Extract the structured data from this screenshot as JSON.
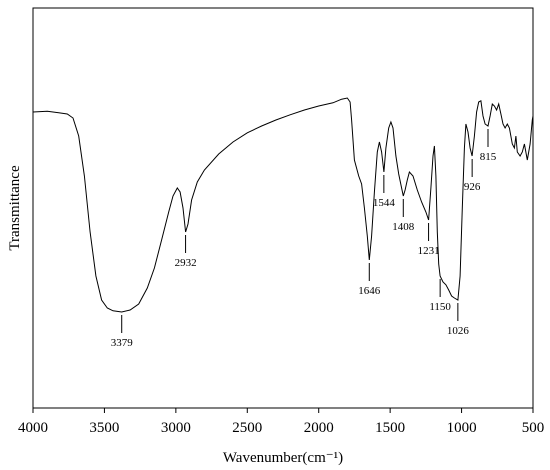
{
  "chart_data": {
    "type": "line",
    "title": "",
    "xlabel": "Wavenumber(cm⁻¹)",
    "ylabel": "Transmittance",
    "xlim": [
      4000,
      500
    ],
    "ylim": [
      0,
      100
    ],
    "x_reversed": true,
    "grid": false,
    "y_tick_labels": false,
    "x_ticks": [
      {
        "value": 4000,
        "label": "4000"
      },
      {
        "value": 3500,
        "label": "3500"
      },
      {
        "value": 3000,
        "label": "3000"
      },
      {
        "value": 2500,
        "label": "2500"
      },
      {
        "value": 2000,
        "label": "2000"
      },
      {
        "value": 1500,
        "label": "1500"
      },
      {
        "value": 1000,
        "label": "1000"
      },
      {
        "value": 500,
        "label": "500"
      }
    ],
    "series": [
      {
        "color": "#000000",
        "points": [
          [
            4000,
            74
          ],
          [
            3900,
            74.2
          ],
          [
            3820,
            73.8
          ],
          [
            3760,
            73.5
          ],
          [
            3720,
            72.5
          ],
          [
            3680,
            68
          ],
          [
            3640,
            58
          ],
          [
            3600,
            44
          ],
          [
            3560,
            33
          ],
          [
            3520,
            27
          ],
          [
            3480,
            25
          ],
          [
            3440,
            24.3
          ],
          [
            3379,
            24
          ],
          [
            3320,
            24.5
          ],
          [
            3260,
            26
          ],
          [
            3200,
            30
          ],
          [
            3150,
            35
          ],
          [
            3100,
            42
          ],
          [
            3050,
            49
          ],
          [
            3020,
            53
          ],
          [
            2990,
            55
          ],
          [
            2970,
            54
          ],
          [
            2950,
            50
          ],
          [
            2932,
            44
          ],
          [
            2915,
            46
          ],
          [
            2890,
            52
          ],
          [
            2850,
            56.5
          ],
          [
            2800,
            59.5
          ],
          [
            2700,
            63.5
          ],
          [
            2600,
            66.5
          ],
          [
            2500,
            68.8
          ],
          [
            2400,
            70.5
          ],
          [
            2300,
            72
          ],
          [
            2200,
            73.3
          ],
          [
            2100,
            74.5
          ],
          [
            2000,
            75.5
          ],
          [
            1900,
            76.3
          ],
          [
            1840,
            77.2
          ],
          [
            1800,
            77.5
          ],
          [
            1780,
            76.5
          ],
          [
            1770,
            72
          ],
          [
            1750,
            62
          ],
          [
            1720,
            58
          ],
          [
            1700,
            56
          ],
          [
            1680,
            50
          ],
          [
            1660,
            43
          ],
          [
            1646,
            37
          ],
          [
            1630,
            43
          ],
          [
            1610,
            54
          ],
          [
            1590,
            64
          ],
          [
            1575,
            66.5
          ],
          [
            1560,
            64
          ],
          [
            1544,
            59
          ],
          [
            1530,
            65
          ],
          [
            1510,
            70
          ],
          [
            1495,
            71.5
          ],
          [
            1480,
            70
          ],
          [
            1460,
            63
          ],
          [
            1440,
            58.5
          ],
          [
            1420,
            55
          ],
          [
            1408,
            53
          ],
          [
            1395,
            54.5
          ],
          [
            1380,
            57
          ],
          [
            1365,
            59
          ],
          [
            1340,
            58
          ],
          [
            1310,
            54.5
          ],
          [
            1280,
            51.5
          ],
          [
            1250,
            49
          ],
          [
            1231,
            47
          ],
          [
            1215,
            55
          ],
          [
            1200,
            63
          ],
          [
            1190,
            65.5
          ],
          [
            1180,
            58
          ],
          [
            1170,
            44
          ],
          [
            1160,
            36
          ],
          [
            1150,
            33
          ],
          [
            1130,
            31.5
          ],
          [
            1110,
            30.8
          ],
          [
            1090,
            29.5
          ],
          [
            1070,
            28
          ],
          [
            1050,
            27.5
          ],
          [
            1026,
            27
          ],
          [
            1010,
            33
          ],
          [
            995,
            50
          ],
          [
            980,
            65
          ],
          [
            970,
            71
          ],
          [
            955,
            69
          ],
          [
            940,
            65
          ],
          [
            926,
            63
          ],
          [
            910,
            68
          ],
          [
            895,
            74
          ],
          [
            880,
            76.5
          ],
          [
            865,
            76.8
          ],
          [
            850,
            73
          ],
          [
            835,
            71
          ],
          [
            815,
            70.5
          ],
          [
            800,
            73
          ],
          [
            785,
            76
          ],
          [
            770,
            75.5
          ],
          [
            755,
            74.5
          ],
          [
            740,
            76
          ],
          [
            725,
            73.5
          ],
          [
            710,
            71
          ],
          [
            695,
            70
          ],
          [
            680,
            71
          ],
          [
            665,
            70
          ],
          [
            645,
            66
          ],
          [
            630,
            65
          ],
          [
            620,
            68
          ],
          [
            610,
            64
          ],
          [
            590,
            63
          ],
          [
            575,
            64
          ],
          [
            560,
            66
          ],
          [
            540,
            62
          ],
          [
            520,
            66
          ],
          [
            505,
            72
          ],
          [
            500,
            73
          ]
        ]
      }
    ],
    "peaks": [
      {
        "x": 3379,
        "y": 24,
        "label": "3379"
      },
      {
        "x": 2932,
        "y": 44,
        "label": "2932"
      },
      {
        "x": 1646,
        "y": 37,
        "label": "1646"
      },
      {
        "x": 1544,
        "y": 59,
        "label": "1544"
      },
      {
        "x": 1408,
        "y": 53,
        "label": "1408"
      },
      {
        "x": 1231,
        "y": 47,
        "label": "1231"
      },
      {
        "x": 1150,
        "y": 33,
        "label": "1150"
      },
      {
        "x": 1026,
        "y": 27,
        "label": "1026"
      },
      {
        "x": 926,
        "y": 63,
        "label": "926"
      },
      {
        "x": 815,
        "y": 70.5,
        "label": "815"
      }
    ]
  }
}
